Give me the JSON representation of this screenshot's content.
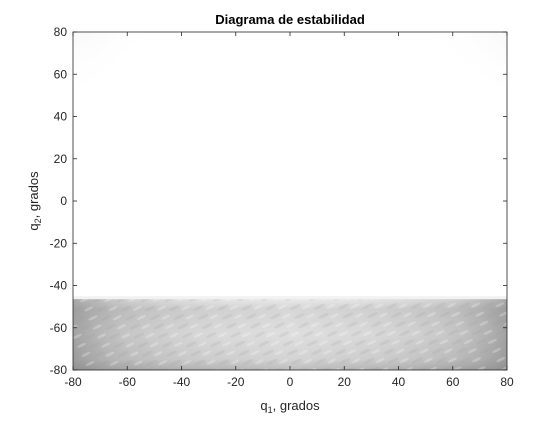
{
  "chart_data": {
    "type": "heatmap",
    "title": "Diagrama de estabilidad",
    "xlabel": {
      "main": "q",
      "sub": "1",
      "rest": ", grados"
    },
    "ylabel": {
      "main": "q",
      "sub": "2",
      "rest": ", grados"
    },
    "xlim": [
      -80,
      80
    ],
    "ylim": [
      -80,
      80
    ],
    "xticks": [
      -80,
      -60,
      -40,
      -20,
      0,
      20,
      40,
      60,
      80
    ],
    "yticks": [
      -80,
      -60,
      -40,
      -20,
      0,
      20,
      40,
      60,
      80
    ],
    "grid": false,
    "colormap": "gray",
    "colors": {
      "stable": "#ffffff",
      "dark": "#8c8c8c",
      "mid": "#c8c8c8",
      "light": "#e6e6e6"
    },
    "regions": [
      {
        "q1_range": [
          -80,
          80
        ],
        "q2_range": [
          -80,
          -46
        ],
        "level": "textured grey band"
      },
      {
        "q1_range": [
          -80,
          -60
        ],
        "q2_range": [
          60,
          80
        ],
        "level": "light grey corner"
      },
      {
        "q1_range": [
          60,
          80
        ],
        "q2_range": [
          60,
          80
        ],
        "level": "light grey corner"
      }
    ]
  }
}
